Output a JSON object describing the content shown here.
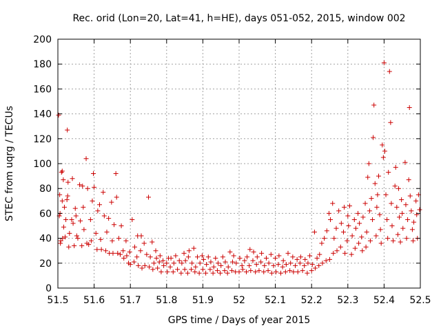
{
  "chart_data": {
    "type": "scatter",
    "title": "Rec. orid (Lon=20, Lat=41, h=HE), days 051-052, 2015, window 002",
    "xlabel": "GPS time / Days of year 2015",
    "ylabel": "STEC from uqrg / TECUs",
    "xlim": [
      51.5,
      52.5
    ],
    "ylim": [
      0,
      200
    ],
    "xticks": [
      "51.5",
      "51.6",
      "51.7",
      "51.8",
      "51.9",
      "52",
      "52.1",
      "52.2",
      "52.3",
      "52.4",
      "52.5"
    ],
    "yticks": [
      "0",
      "20",
      "40",
      "60",
      "80",
      "100",
      "120",
      "140",
      "160",
      "180",
      "200"
    ],
    "grid": true,
    "legend": "none",
    "marker": "+",
    "color": "#cc0000",
    "points": [
      [
        51.502,
        139
      ],
      [
        51.504,
        58
      ],
      [
        51.505,
        75
      ],
      [
        51.506,
        60
      ],
      [
        51.507,
        36
      ],
      [
        51.508,
        38
      ],
      [
        51.51,
        93
      ],
      [
        51.512,
        94
      ],
      [
        51.512,
        70
      ],
      [
        51.513,
        40
      ],
      [
        51.515,
        87
      ],
      [
        51.516,
        49
      ],
      [
        51.518,
        65
      ],
      [
        51.52,
        41
      ],
      [
        51.522,
        55
      ],
      [
        51.525,
        71
      ],
      [
        51.526,
        127
      ],
      [
        51.527,
        74
      ],
      [
        51.528,
        85
      ],
      [
        51.53,
        33
      ],
      [
        51.532,
        44
      ],
      [
        51.538,
        55
      ],
      [
        51.54,
        88
      ],
      [
        51.542,
        52
      ],
      [
        51.545,
        34
      ],
      [
        51.548,
        64
      ],
      [
        51.55,
        58
      ],
      [
        51.552,
        42
      ],
      [
        51.555,
        40
      ],
      [
        51.56,
        83
      ],
      [
        51.562,
        54
      ],
      [
        51.566,
        34
      ],
      [
        51.568,
        82
      ],
      [
        51.57,
        65
      ],
      [
        51.572,
        47
      ],
      [
        51.578,
        104
      ],
      [
        51.58,
        36
      ],
      [
        51.582,
        80
      ],
      [
        51.585,
        35
      ],
      [
        51.59,
        55
      ],
      [
        51.592,
        38
      ],
      [
        51.595,
        70
      ],
      [
        51.598,
        92
      ],
      [
        51.6,
        81
      ],
      [
        51.605,
        44
      ],
      [
        51.608,
        31
      ],
      [
        51.61,
        62
      ],
      [
        51.615,
        67
      ],
      [
        51.618,
        39
      ],
      [
        51.62,
        31
      ],
      [
        51.625,
        77
      ],
      [
        51.628,
        58
      ],
      [
        51.632,
        30
      ],
      [
        51.635,
        45
      ],
      [
        51.64,
        56
      ],
      [
        51.642,
        28
      ],
      [
        51.648,
        69
      ],
      [
        51.65,
        38
      ],
      [
        51.652,
        28
      ],
      [
        51.655,
        51
      ],
      [
        51.66,
        92
      ],
      [
        51.662,
        73
      ],
      [
        51.665,
        28
      ],
      [
        51.668,
        40
      ],
      [
        51.672,
        27
      ],
      [
        51.675,
        50
      ],
      [
        51.68,
        30
      ],
      [
        51.682,
        24
      ],
      [
        51.688,
        38
      ],
      [
        51.69,
        26
      ],
      [
        51.695,
        20
      ],
      [
        51.698,
        29
      ],
      [
        51.7,
        19
      ],
      [
        51.705,
        55
      ],
      [
        51.71,
        21
      ],
      [
        51.712,
        33
      ],
      [
        51.718,
        25
      ],
      [
        51.72,
        42
      ],
      [
        51.722,
        18
      ],
      [
        51.728,
        30
      ],
      [
        51.73,
        42
      ],
      [
        51.732,
        16
      ],
      [
        51.738,
        36
      ],
      [
        51.74,
        18
      ],
      [
        51.745,
        27
      ],
      [
        51.75,
        73
      ],
      [
        51.752,
        17
      ],
      [
        51.755,
        25
      ],
      [
        51.76,
        37
      ],
      [
        51.762,
        15
      ],
      [
        51.765,
        20
      ],
      [
        51.77,
        30
      ],
      [
        51.772,
        24
      ],
      [
        51.775,
        16
      ],
      [
        51.78,
        21
      ],
      [
        51.782,
        26
      ],
      [
        51.785,
        13
      ],
      [
        51.79,
        22
      ],
      [
        51.792,
        18
      ],
      [
        51.8,
        20
      ],
      [
        51.802,
        13
      ],
      [
        51.805,
        24
      ],
      [
        51.81,
        17
      ],
      [
        51.812,
        24
      ],
      [
        51.818,
        13
      ],
      [
        51.82,
        20
      ],
      [
        51.825,
        26
      ],
      [
        51.83,
        15
      ],
      [
        51.835,
        22
      ],
      [
        51.84,
        12
      ],
      [
        51.842,
        20
      ],
      [
        51.848,
        28
      ],
      [
        51.85,
        15
      ],
      [
        51.852,
        22
      ],
      [
        51.858,
        12
      ],
      [
        51.86,
        25
      ],
      [
        51.862,
        30
      ],
      [
        51.868,
        15
      ],
      [
        51.87,
        20
      ],
      [
        51.875,
        32
      ],
      [
        51.878,
        13
      ],
      [
        51.88,
        17
      ],
      [
        51.885,
        25
      ],
      [
        51.89,
        12
      ],
      [
        51.892,
        20
      ],
      [
        51.898,
        26
      ],
      [
        51.9,
        15
      ],
      [
        51.902,
        23
      ],
      [
        51.908,
        12
      ],
      [
        51.91,
        19
      ],
      [
        51.915,
        25
      ],
      [
        51.92,
        15
      ],
      [
        51.922,
        21
      ],
      [
        51.928,
        12
      ],
      [
        51.93,
        17
      ],
      [
        51.935,
        24
      ],
      [
        51.94,
        14
      ],
      [
        51.942,
        20
      ],
      [
        51.948,
        12
      ],
      [
        51.95,
        18
      ],
      [
        51.955,
        25
      ],
      [
        51.96,
        14
      ],
      [
        51.962,
        21
      ],
      [
        51.968,
        12
      ],
      [
        51.97,
        17
      ],
      [
        51.975,
        29
      ],
      [
        51.98,
        14
      ],
      [
        51.982,
        21
      ],
      [
        51.985,
        26
      ],
      [
        51.99,
        13
      ],
      [
        51.992,
        20
      ],
      [
        52.0,
        13
      ],
      [
        52.002,
        24
      ],
      [
        52.008,
        18
      ],
      [
        52.01,
        15
      ],
      [
        52.015,
        22
      ],
      [
        52.02,
        13
      ],
      [
        52.022,
        25
      ],
      [
        52.028,
        18
      ],
      [
        52.03,
        31
      ],
      [
        52.032,
        14
      ],
      [
        52.038,
        22
      ],
      [
        52.04,
        29
      ],
      [
        52.045,
        13
      ],
      [
        52.048,
        19
      ],
      [
        52.05,
        25
      ],
      [
        52.055,
        14
      ],
      [
        52.06,
        21
      ],
      [
        52.062,
        28
      ],
      [
        52.068,
        13
      ],
      [
        52.07,
        18
      ],
      [
        52.075,
        24
      ],
      [
        52.08,
        14
      ],
      [
        52.082,
        20
      ],
      [
        52.088,
        27
      ],
      [
        52.09,
        12
      ],
      [
        52.095,
        18
      ],
      [
        52.1,
        24
      ],
      [
        52.102,
        13
      ],
      [
        52.108,
        19
      ],
      [
        52.11,
        26
      ],
      [
        52.115,
        12
      ],
      [
        52.12,
        17
      ],
      [
        52.122,
        22
      ],
      [
        52.128,
        13
      ],
      [
        52.13,
        19
      ],
      [
        52.135,
        28
      ],
      [
        52.14,
        14
      ],
      [
        52.142,
        20
      ],
      [
        52.148,
        25
      ],
      [
        52.15,
        13
      ],
      [
        52.155,
        18
      ],
      [
        52.16,
        23
      ],
      [
        52.162,
        13
      ],
      [
        52.168,
        20
      ],
      [
        52.17,
        25
      ],
      [
        52.175,
        14
      ],
      [
        52.18,
        18
      ],
      [
        52.182,
        23
      ],
      [
        52.188,
        12
      ],
      [
        52.19,
        20
      ],
      [
        52.195,
        26
      ],
      [
        52.2,
        14
      ],
      [
        52.202,
        19
      ],
      [
        52.208,
        45
      ],
      [
        52.21,
        16
      ],
      [
        52.215,
        24
      ],
      [
        52.22,
        18
      ],
      [
        52.222,
        27
      ],
      [
        52.228,
        36
      ],
      [
        52.23,
        20
      ],
      [
        52.235,
        40
      ],
      [
        52.24,
        22
      ],
      [
        52.242,
        46
      ],
      [
        52.248,
        60
      ],
      [
        52.25,
        23
      ],
      [
        52.252,
        55
      ],
      [
        52.258,
        68
      ],
      [
        52.26,
        28
      ],
      [
        52.262,
        40
      ],
      [
        52.268,
        48
      ],
      [
        52.27,
        30
      ],
      [
        52.275,
        62
      ],
      [
        52.28,
        33
      ],
      [
        52.282,
        52
      ],
      [
        52.288,
        45
      ],
      [
        52.29,
        65
      ],
      [
        52.292,
        28
      ],
      [
        52.298,
        38
      ],
      [
        52.3,
        58
      ],
      [
        52.302,
        50
      ],
      [
        52.305,
        66
      ],
      [
        52.31,
        27
      ],
      [
        52.312,
        42
      ],
      [
        52.318,
        55
      ],
      [
        52.32,
        32
      ],
      [
        52.322,
        48
      ],
      [
        52.328,
        60
      ],
      [
        52.33,
        36
      ],
      [
        52.332,
        52
      ],
      [
        52.338,
        41
      ],
      [
        52.34,
        30
      ],
      [
        52.342,
        57
      ],
      [
        52.348,
        68
      ],
      [
        52.35,
        33
      ],
      [
        52.352,
        45
      ],
      [
        52.355,
        89
      ],
      [
        52.358,
        100
      ],
      [
        52.36,
        62
      ],
      [
        52.362,
        38
      ],
      [
        52.365,
        72
      ],
      [
        52.368,
        55
      ],
      [
        52.37,
        121
      ],
      [
        52.372,
        147
      ],
      [
        52.375,
        84
      ],
      [
        52.378,
        42
      ],
      [
        52.38,
        65
      ],
      [
        52.382,
        75
      ],
      [
        52.385,
        90
      ],
      [
        52.388,
        59
      ],
      [
        52.39,
        47
      ],
      [
        52.392,
        36
      ],
      [
        52.395,
        115
      ],
      [
        52.398,
        105
      ],
      [
        52.4,
        181
      ],
      [
        52.402,
        110
      ],
      [
        52.405,
        75
      ],
      [
        52.408,
        55
      ],
      [
        52.41,
        40
      ],
      [
        52.412,
        93
      ],
      [
        52.415,
        174
      ],
      [
        52.418,
        133
      ],
      [
        52.42,
        68
      ],
      [
        52.422,
        50
      ],
      [
        52.425,
        38
      ],
      [
        52.43,
        82
      ],
      [
        52.432,
        97
      ],
      [
        52.435,
        65
      ],
      [
        52.438,
        43
      ],
      [
        52.44,
        80
      ],
      [
        52.442,
        57
      ],
      [
        52.445,
        37
      ],
      [
        52.448,
        71
      ],
      [
        52.45,
        60
      ],
      [
        52.452,
        48
      ],
      [
        52.458,
        101
      ],
      [
        52.46,
        67
      ],
      [
        52.462,
        40
      ],
      [
        52.465,
        55
      ],
      [
        52.468,
        87
      ],
      [
        52.47,
        145
      ],
      [
        52.472,
        74
      ],
      [
        52.475,
        62
      ],
      [
        52.478,
        47
      ],
      [
        52.48,
        38
      ],
      [
        52.482,
        53
      ],
      [
        52.488,
        70
      ],
      [
        52.49,
        59
      ],
      [
        52.492,
        40
      ],
      [
        52.495,
        75
      ],
      [
        52.498,
        63
      ]
    ]
  }
}
